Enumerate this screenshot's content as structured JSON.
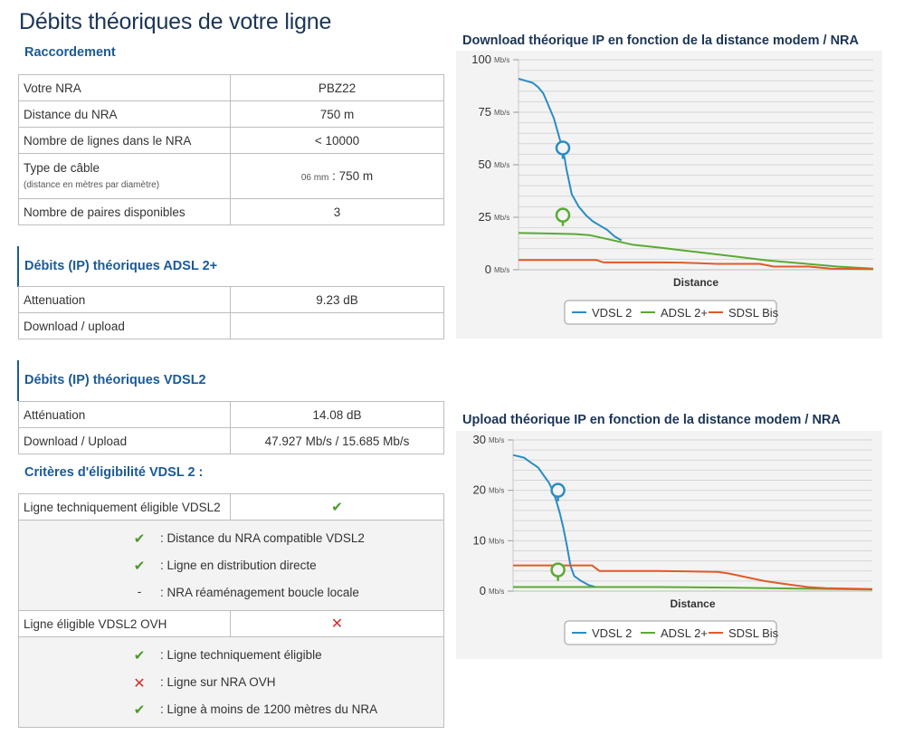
{
  "page_title": "Débits théoriques de votre ligne",
  "raccordement": {
    "title": "Raccordement",
    "rows": [
      {
        "label": "Votre NRA",
        "value": "PBZ22"
      },
      {
        "label": "Distance du NRA",
        "value": "750 m"
      },
      {
        "label": "Nombre de lignes dans le NRA",
        "value": "< 10000"
      },
      {
        "label": "Type de câble",
        "note": "(distance en mètres par diamètre)",
        "diam": "06 mm",
        "value": ": 750 m"
      },
      {
        "label": "Nombre de paires disponibles",
        "value": "3"
      }
    ]
  },
  "adsl": {
    "title": "Débits (IP) théoriques ADSL 2+",
    "rows": [
      {
        "label": "Attenuation",
        "value": "9.23 dB"
      },
      {
        "label": "Download / upload",
        "value": ""
      }
    ]
  },
  "vdsl": {
    "title": "Débits (IP) théoriques VDSL2",
    "rows": [
      {
        "label": "Atténuation",
        "value": "14.08 dB"
      },
      {
        "label": "Download / Upload",
        "value": "47.927 Mb/s / 15.685 Mb/s"
      }
    ],
    "criteria_title": "Critères d'éligibilité VDSL 2 :",
    "eligible_tech": {
      "label": "Ligne techniquement éligible VDSL2",
      "status": "yes"
    },
    "tech_criteria": [
      {
        "mark": "check",
        "text": ": Distance du NRA compatible VDSL2"
      },
      {
        "mark": "check",
        "text": ": Ligne en distribution directe"
      },
      {
        "mark": "dash",
        "text": ": NRA réaménagement boucle locale"
      }
    ],
    "eligible_ovh": {
      "label": "Ligne éligible VDSL2 OVH",
      "status": "no"
    },
    "ovh_criteria": [
      {
        "mark": "check",
        "text": ": Ligne techniquement éligible"
      },
      {
        "mark": "cross",
        "text": ": Ligne sur NRA OVH"
      },
      {
        "mark": "check",
        "text": ": Ligne à moins de 1200 mètres du NRA"
      }
    ]
  },
  "marks": {
    "check": "✔",
    "cross": "✕",
    "dash": "-"
  },
  "colors": {
    "vdsl": "#2b8cc4",
    "adsl": "#5aaa32",
    "sdsl": "#e05a2b",
    "title_blue": "#1a5a96"
  },
  "chart_data": [
    {
      "type": "line",
      "title": "Download théorique IP en fonction de la distance modem / NRA",
      "xlabel": "Distance",
      "ylabel": "",
      "unit": "Mb/s",
      "xlim": [
        0,
        100
      ],
      "ylim": [
        0,
        100
      ],
      "yticks": [
        0,
        25,
        50,
        75,
        100
      ],
      "grid": true,
      "legend_position": "bottom-center",
      "series": [
        {
          "name": "VDSL 2",
          "color": "#2b8cc4",
          "marker": {
            "x": 12.5,
            "y": 58
          },
          "x": [
            0,
            2,
            4,
            5.5,
            7,
            8,
            9,
            10,
            11,
            12,
            13,
            13.5,
            14,
            15,
            17,
            19,
            21,
            23,
            25,
            27,
            29
          ],
          "y": [
            91,
            90,
            89,
            87,
            84,
            80,
            76,
            72,
            66,
            60,
            53,
            48,
            44,
            36,
            30,
            26,
            23,
            21,
            19,
            16,
            14
          ]
        },
        {
          "name": "ADSL 2+",
          "color": "#5aaa32",
          "marker": {
            "x": 12.5,
            "y": 26
          },
          "x": [
            0,
            8,
            16,
            20,
            24,
            28,
            32,
            40,
            50,
            60,
            70,
            80,
            90,
            100
          ],
          "y": [
            17.5,
            17.3,
            17,
            16.5,
            15,
            13.5,
            12,
            10.5,
            8.5,
            6.5,
            4.5,
            3,
            1.5,
            0.5
          ]
        },
        {
          "name": "SDSL Bis",
          "color": "#e05a2b",
          "x": [
            0,
            10,
            22,
            24,
            40,
            46,
            56,
            68,
            72,
            82,
            88,
            100
          ],
          "y": [
            4.6,
            4.6,
            4.6,
            3.5,
            3.5,
            3.4,
            2.8,
            2.8,
            1.5,
            1.5,
            0.5,
            0.3
          ]
        }
      ]
    },
    {
      "type": "line",
      "title": "Upload théorique IP en fonction de la distance modem / NRA",
      "xlabel": "Distance",
      "ylabel": "",
      "unit": "Mb/s",
      "xlim": [
        0,
        100
      ],
      "ylim": [
        0,
        30
      ],
      "yticks": [
        0,
        10,
        20,
        30
      ],
      "grid": true,
      "legend_position": "bottom-center",
      "series": [
        {
          "name": "VDSL 2",
          "color": "#2b8cc4",
          "marker": {
            "x": 12.5,
            "y": 20
          },
          "x": [
            0,
            3,
            5,
            7,
            8.5,
            10,
            11,
            12,
            13,
            14,
            15,
            16,
            17,
            19,
            21,
            23,
            25,
            27
          ],
          "y": [
            27,
            26.5,
            25.5,
            24.5,
            23,
            21.5,
            20,
            18,
            15.5,
            12.5,
            9,
            5,
            3,
            2,
            1.2,
            0.8,
            0.8,
            0.8
          ]
        },
        {
          "name": "ADSL 2+",
          "color": "#5aaa32",
          "marker": {
            "x": 12.5,
            "y": 4.2
          },
          "x": [
            0,
            20,
            40,
            60,
            80,
            100
          ],
          "y": [
            0.8,
            0.8,
            0.8,
            0.7,
            0.5,
            0.3
          ]
        },
        {
          "name": "SDSL Bis",
          "color": "#e05a2b",
          "x": [
            0,
            22,
            24,
            40,
            57,
            60,
            70,
            75,
            82,
            87,
            100
          ],
          "y": [
            5.1,
            5.1,
            4,
            4,
            3.8,
            3.5,
            2,
            1.5,
            0.8,
            0.6,
            0.4
          ]
        }
      ]
    }
  ]
}
